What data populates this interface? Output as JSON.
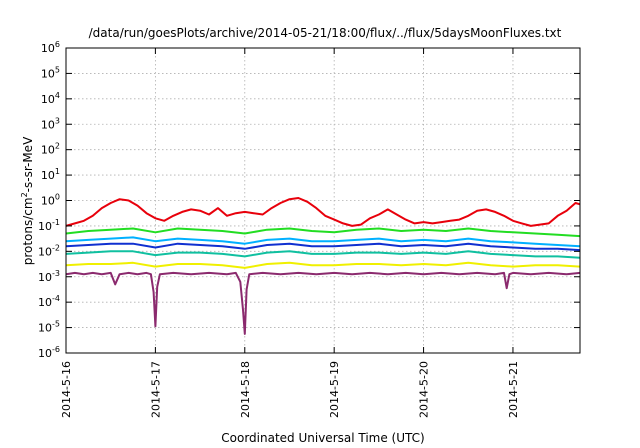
{
  "chart_data": {
    "type": "line",
    "title": "/data/run/goesPlots/archive/2014-05-21/18:00/flux/../flux/5daysMoonFluxes.txt",
    "xlabel": "Coordinated Universal Time (UTC)",
    "ylabel": {
      "prefix": "protons/cm",
      "sup": "2",
      "suffix": "-s-sr-MeV"
    },
    "yscale": "log",
    "ylim_exp": [
      -6,
      6
    ],
    "y_tick_exponents": [
      -6,
      -5,
      -4,
      -3,
      -2,
      -1,
      0,
      1,
      2,
      3,
      4,
      5,
      6
    ],
    "y_tick_base": "10",
    "x_ticks": [
      "2014-5-16",
      "2014-5-17",
      "2014-5-18",
      "2014-5-19",
      "2014-5-20",
      "2014-5-21"
    ],
    "x_tick_days": [
      0,
      1,
      2,
      3,
      4,
      5
    ],
    "xlim_days": [
      0,
      5.75
    ],
    "grid": true,
    "series": [
      {
        "color": "#e8000b",
        "x_days": [
          0,
          0.1,
          0.2,
          0.3,
          0.4,
          0.5,
          0.6,
          0.7,
          0.8,
          0.9,
          1.0,
          1.1,
          1.2,
          1.3,
          1.4,
          1.5,
          1.6,
          1.7,
          1.8,
          1.9,
          2.0,
          2.1,
          2.2,
          2.3,
          2.4,
          2.5,
          2.6,
          2.7,
          2.8,
          2.9,
          3.0,
          3.1,
          3.2,
          3.3,
          3.4,
          3.5,
          3.6,
          3.7,
          3.8,
          3.9,
          4.0,
          4.1,
          4.2,
          4.3,
          4.4,
          4.5,
          4.6,
          4.7,
          4.8,
          4.9,
          5.0,
          5.1,
          5.2,
          5.3,
          5.4,
          5.5,
          5.6,
          5.7,
          5.75
        ],
        "log_y": [
          -1.0,
          -0.9,
          -0.8,
          -0.6,
          -0.3,
          -0.1,
          0.05,
          0.0,
          -0.2,
          -0.5,
          -0.7,
          -0.8,
          -0.6,
          -0.45,
          -0.35,
          -0.4,
          -0.55,
          -0.3,
          -0.6,
          -0.5,
          -0.45,
          -0.5,
          -0.55,
          -0.3,
          -0.1,
          0.05,
          0.1,
          -0.05,
          -0.3,
          -0.6,
          -0.75,
          -0.9,
          -1.0,
          -0.95,
          -0.7,
          -0.55,
          -0.35,
          -0.55,
          -0.75,
          -0.9,
          -0.85,
          -0.9,
          -0.85,
          -0.8,
          -0.75,
          -0.6,
          -0.4,
          -0.35,
          -0.45,
          -0.6,
          -0.8,
          -0.9,
          -1.0,
          -0.95,
          -0.9,
          -0.6,
          -0.4,
          -0.1,
          -0.15
        ]
      },
      {
        "color": "#22dd22",
        "x_days": [
          0,
          0.25,
          0.5,
          0.75,
          1.0,
          1.25,
          1.5,
          1.75,
          2.0,
          2.25,
          2.5,
          2.75,
          3.0,
          3.25,
          3.5,
          3.75,
          4.0,
          4.25,
          4.5,
          4.75,
          5.0,
          5.25,
          5.5,
          5.75
        ],
        "log_y": [
          -1.3,
          -1.2,
          -1.15,
          -1.1,
          -1.25,
          -1.1,
          -1.15,
          -1.2,
          -1.3,
          -1.15,
          -1.1,
          -1.2,
          -1.25,
          -1.15,
          -1.1,
          -1.2,
          -1.15,
          -1.2,
          -1.1,
          -1.2,
          -1.25,
          -1.3,
          -1.35,
          -1.4
        ]
      },
      {
        "color": "#00b0ff",
        "x_days": [
          0,
          0.25,
          0.5,
          0.75,
          1.0,
          1.25,
          1.5,
          1.75,
          2.0,
          2.25,
          2.5,
          2.75,
          3.0,
          3.25,
          3.5,
          3.75,
          4.0,
          4.25,
          4.5,
          4.75,
          5.0,
          5.25,
          5.5,
          5.75
        ],
        "log_y": [
          -1.6,
          -1.55,
          -1.5,
          -1.45,
          -1.6,
          -1.5,
          -1.55,
          -1.6,
          -1.7,
          -1.55,
          -1.5,
          -1.6,
          -1.6,
          -1.55,
          -1.5,
          -1.6,
          -1.55,
          -1.6,
          -1.5,
          -1.6,
          -1.65,
          -1.7,
          -1.75,
          -1.8
        ]
      },
      {
        "color": "#1030d0",
        "x_days": [
          0,
          0.25,
          0.5,
          0.75,
          1.0,
          1.25,
          1.5,
          1.75,
          2.0,
          2.25,
          2.5,
          2.75,
          3.0,
          3.25,
          3.5,
          3.75,
          4.0,
          4.25,
          4.5,
          4.75,
          5.0,
          5.25,
          5.5,
          5.75
        ],
        "log_y": [
          -1.8,
          -1.75,
          -1.7,
          -1.7,
          -1.85,
          -1.7,
          -1.75,
          -1.8,
          -1.9,
          -1.75,
          -1.7,
          -1.8,
          -1.8,
          -1.75,
          -1.7,
          -1.8,
          -1.75,
          -1.8,
          -1.7,
          -1.8,
          -1.85,
          -1.9,
          -1.9,
          -1.95
        ]
      },
      {
        "color": "#10c0a0",
        "x_days": [
          0,
          0.25,
          0.5,
          0.75,
          1.0,
          1.25,
          1.5,
          1.75,
          2.0,
          2.25,
          2.5,
          2.75,
          3.0,
          3.25,
          3.5,
          3.75,
          4.0,
          4.25,
          4.5,
          4.75,
          5.0,
          5.25,
          5.5,
          5.75
        ],
        "log_y": [
          -2.1,
          -2.05,
          -2.0,
          -2.0,
          -2.15,
          -2.05,
          -2.05,
          -2.1,
          -2.2,
          -2.05,
          -2.0,
          -2.1,
          -2.1,
          -2.05,
          -2.05,
          -2.1,
          -2.05,
          -2.1,
          -2.0,
          -2.1,
          -2.15,
          -2.2,
          -2.2,
          -2.25
        ]
      },
      {
        "color": "#f0f000",
        "x_days": [
          0,
          0.25,
          0.5,
          0.75,
          1.0,
          1.25,
          1.5,
          1.75,
          2.0,
          2.25,
          2.5,
          2.75,
          3.0,
          3.25,
          3.5,
          3.75,
          4.0,
          4.25,
          4.5,
          4.75,
          5.0,
          5.25,
          5.5,
          5.75
        ],
        "log_y": [
          -2.55,
          -2.5,
          -2.5,
          -2.45,
          -2.6,
          -2.5,
          -2.5,
          -2.55,
          -2.65,
          -2.5,
          -2.45,
          -2.55,
          -2.55,
          -2.5,
          -2.5,
          -2.55,
          -2.5,
          -2.55,
          -2.45,
          -2.55,
          -2.6,
          -2.55,
          -2.55,
          -2.6
        ]
      },
      {
        "color": "#8b2a6e",
        "x_days": [
          0,
          0.1,
          0.2,
          0.3,
          0.4,
          0.5,
          0.55,
          0.6,
          0.7,
          0.8,
          0.9,
          0.95,
          0.98,
          1.0,
          1.02,
          1.05,
          1.2,
          1.4,
          1.6,
          1.8,
          1.9,
          1.95,
          1.98,
          2.0,
          2.02,
          2.05,
          2.2,
          2.4,
          2.6,
          2.8,
          3.0,
          3.2,
          3.4,
          3.6,
          3.8,
          4.0,
          4.2,
          4.4,
          4.6,
          4.8,
          4.9,
          4.93,
          4.96,
          5.0,
          5.2,
          5.4,
          5.6,
          5.75
        ],
        "log_y": [
          -2.9,
          -2.85,
          -2.9,
          -2.85,
          -2.9,
          -2.85,
          -3.3,
          -2.9,
          -2.85,
          -2.9,
          -2.85,
          -2.9,
          -3.6,
          -4.95,
          -3.4,
          -2.9,
          -2.85,
          -2.9,
          -2.85,
          -2.9,
          -2.85,
          -3.2,
          -4.3,
          -5.25,
          -3.5,
          -2.9,
          -2.85,
          -2.9,
          -2.85,
          -2.9,
          -2.85,
          -2.9,
          -2.85,
          -2.9,
          -2.85,
          -2.9,
          -2.85,
          -2.9,
          -2.85,
          -2.9,
          -2.85,
          -3.45,
          -2.9,
          -2.85,
          -2.9,
          -2.85,
          -2.9,
          -2.85
        ]
      }
    ]
  }
}
